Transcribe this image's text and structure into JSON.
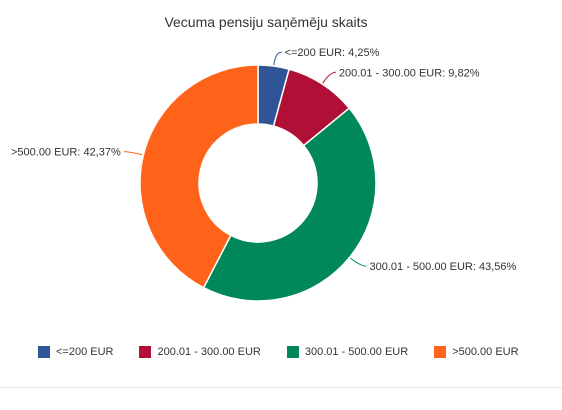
{
  "chart_data": {
    "type": "pie",
    "variant": "donut",
    "title": "Vecuma pensiju saņēmēju skaits",
    "legend_position": "bottom",
    "slices": [
      {
        "name": "<=200 EUR",
        "value": 4.25,
        "label": "<=200 EUR: 4,25%",
        "color": "#2f5597"
      },
      {
        "name": "200.01 - 300.00 EUR",
        "value": 9.82,
        "label": "200.01 - 300.00 EUR: 9,82%",
        "color": "#b01035"
      },
      {
        "name": "300.01 - 500.00 EUR",
        "value": 43.56,
        "label": "300.01 - 500.00 EUR: 43,56%",
        "color": "#00875a"
      },
      {
        "name": ">500.00 EUR",
        "value": 42.37,
        "label": ">500.00 EUR: 42,37%",
        "color": "#ff6319"
      }
    ]
  }
}
